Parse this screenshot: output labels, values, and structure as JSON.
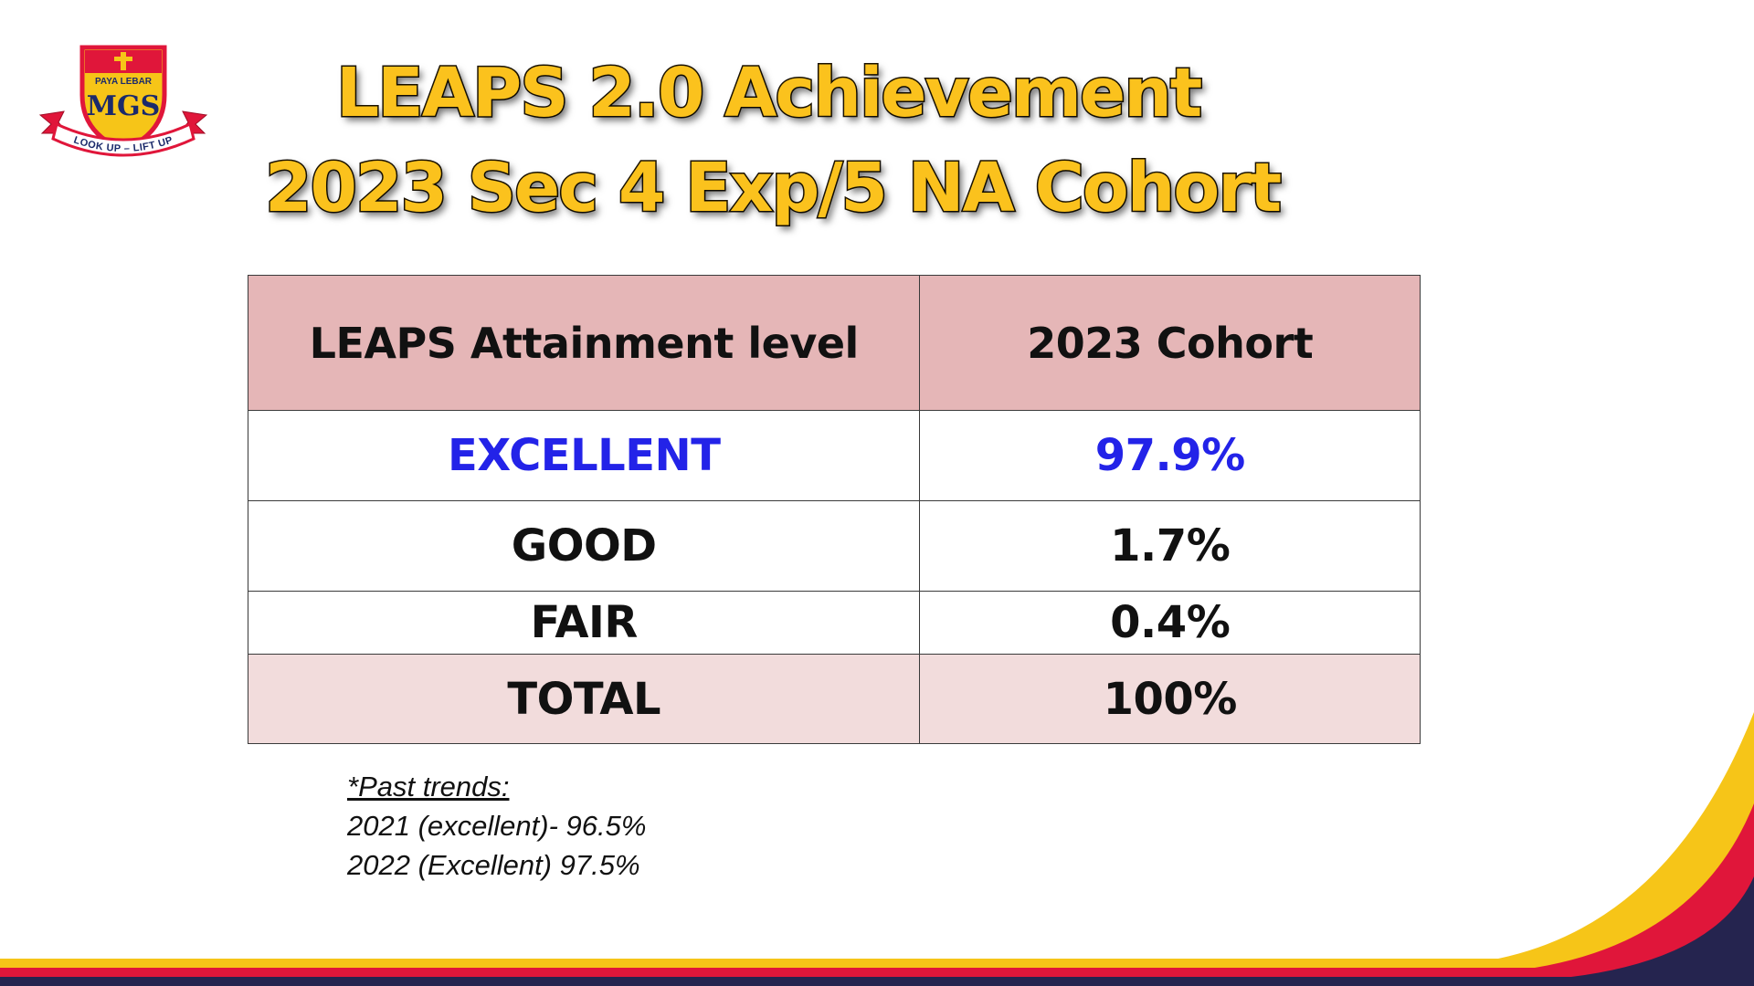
{
  "logo": {
    "school_name": "PAYA LEBAR",
    "initials": "MGS",
    "motto": "LOOK UP – LIFT UP"
  },
  "title": {
    "line1": "LEAPS 2.0 Achievement",
    "line2": "2023 Sec 4 Exp/5 NA Cohort",
    "color": "#fbc21d"
  },
  "table": {
    "headers": [
      "LEAPS Attainment level",
      "2023 Cohort"
    ],
    "rows": [
      {
        "level": "EXCELLENT",
        "value": "97.9%"
      },
      {
        "level": "GOOD",
        "value": "1.7%"
      },
      {
        "level": "FAIR",
        "value": "0.4%"
      },
      {
        "level": "TOTAL",
        "value": "100%"
      }
    ],
    "colors": {
      "header_bg": "#e5b6b7",
      "total_bg": "#f2dcdc",
      "excellent_text": "#2323e8"
    }
  },
  "notes": {
    "heading": "*Past trends:",
    "lines": [
      "2021 (excellent)- 96.5%",
      "2022 (Excellent) 97.5%"
    ]
  },
  "colors": {
    "swoosh_yellow": "#f6c518",
    "swoosh_red": "#e0163a",
    "swoosh_navy": "#25244f"
  }
}
